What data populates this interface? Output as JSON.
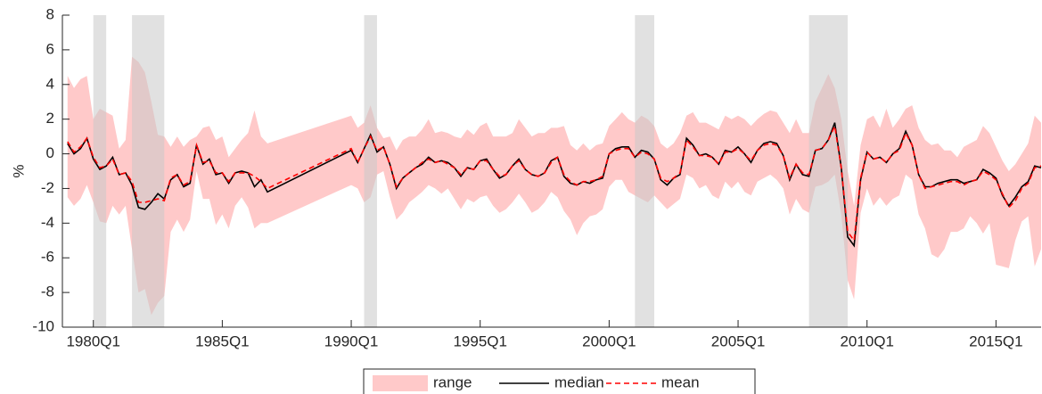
{
  "chart_data": {
    "type": "band-line",
    "ylabel": "%",
    "xlim": [
      1978.8,
      2016.75
    ],
    "ylim": [
      -10,
      8
    ],
    "yticks": [
      -10,
      -8,
      -6,
      -4,
      -2,
      0,
      2,
      4,
      6,
      8
    ],
    "xticks": [
      {
        "value": 1980,
        "label": "1980Q1"
      },
      {
        "value": 1985,
        "label": "1985Q1"
      },
      {
        "value": 1990,
        "label": "1990Q1"
      },
      {
        "value": 1995,
        "label": "1995Q1"
      },
      {
        "value": 2000,
        "label": "2000Q1"
      },
      {
        "value": 2005,
        "label": "2005Q1"
      },
      {
        "value": 2010,
        "label": "2010Q1"
      },
      {
        "value": 2015,
        "label": "2015Q1"
      }
    ],
    "recessions": [
      [
        1980.0,
        1980.5
      ],
      [
        1981.5,
        1982.75
      ],
      [
        1990.5,
        1991.0
      ],
      [
        2001.0,
        2001.75
      ],
      [
        2007.75,
        2009.25
      ]
    ],
    "recession_color": "#c8c8c8",
    "x": [
      1979,
      1979.25,
      1979.5,
      1979.75,
      1980,
      1980.25,
      1980.5,
      1980.75,
      1981,
      1981.25,
      1981.5,
      1981.75,
      1982,
      1982.25,
      1982.5,
      1982.75,
      1983,
      1983.25,
      1983.5,
      1983.75,
      1984,
      1984.25,
      1984.5,
      1984.75,
      1985,
      1985.25,
      1985.5,
      1985.75,
      1986,
      1986.25,
      1986.5,
      1986.75,
      1990,
      1990.25,
      1990.5,
      1990.75,
      1991,
      1991.25,
      1991.5,
      1991.75,
      1992,
      1992.25,
      1992.5,
      1992.75,
      1993,
      1993.25,
      1993.5,
      1993.75,
      1994,
      1994.25,
      1994.5,
      1994.75,
      1995,
      1995.25,
      1995.5,
      1995.75,
      1996,
      1996.25,
      1996.5,
      1996.75,
      1997,
      1997.25,
      1997.5,
      1997.75,
      1998,
      1998.25,
      1998.5,
      1998.75,
      1999,
      1999.25,
      1999.5,
      1999.75,
      2000,
      2000.25,
      2000.5,
      2000.75,
      2001,
      2001.25,
      2001.5,
      2001.75,
      2002,
      2002.25,
      2002.5,
      2002.75,
      2003,
      2003.25,
      2003.5,
      2003.75,
      2004,
      2004.25,
      2004.5,
      2004.75,
      2005,
      2005.25,
      2005.5,
      2005.75,
      2006,
      2006.25,
      2006.5,
      2006.75,
      2007,
      2007.25,
      2007.5,
      2007.75,
      2008,
      2008.25,
      2008.5,
      2008.75,
      2009,
      2009.25,
      2009.5,
      2009.75,
      2010,
      2010.25,
      2010.5,
      2010.75,
      2011,
      2011.25,
      2011.5,
      2011.75,
      2012,
      2012.25,
      2012.5,
      2012.75,
      2013,
      2013.25,
      2013.5,
      2013.75,
      2014,
      2014.25,
      2014.5,
      2014.75,
      2015,
      2015.25,
      2015.5,
      2015.75,
      2016,
      2016.25,
      2016.5,
      2016.75
    ],
    "range": {
      "name": "range",
      "color": "#ffc9c9",
      "upper": [
        4.5,
        3.8,
        4.3,
        4.5,
        2.0,
        2.6,
        2.4,
        2.2,
        0.3,
        0.8,
        5.6,
        5.3,
        4.7,
        3.0,
        1.1,
        1.0,
        0.4,
        1.0,
        0.4,
        0.8,
        1.0,
        1.5,
        1.6,
        0.8,
        1.0,
        -0.2,
        0.3,
        0.8,
        1.2,
        2.5,
        1.0,
        0.6,
        2.2,
        1.5,
        1.8,
        2.8,
        1.5,
        0.9,
        1.0,
        0.2,
        0.8,
        1.0,
        1.0,
        1.4,
        2.0,
        1.2,
        1.3,
        1.2,
        1.0,
        0.9,
        1.4,
        1.1,
        1.6,
        1.8,
        1.0,
        1.0,
        1.0,
        1.2,
        2.0,
        1.5,
        1.0,
        1.2,
        1.2,
        1.5,
        1.5,
        1.6,
        0.5,
        0.2,
        0.6,
        0.2,
        0.5,
        0.6,
        1.6,
        2.0,
        2.4,
        2.0,
        1.8,
        2.2,
        2.0,
        1.6,
        0.6,
        0.3,
        0.6,
        1.2,
        2.2,
        2.4,
        1.8,
        1.8,
        1.6,
        1.4,
        2.2,
        2.0,
        2.2,
        2.0,
        1.6,
        2.0,
        2.3,
        2.5,
        2.4,
        1.8,
        1.2,
        2.0,
        1.2,
        1.2,
        3.0,
        3.8,
        4.6,
        3.8,
        2.0,
        -1.0,
        -3.0,
        0.5,
        2.0,
        2.2,
        1.5,
        2.6,
        1.5,
        2.0,
        2.6,
        2.8,
        1.5,
        0.8,
        0.5,
        0.6,
        0.2,
        0.2,
        -0.2,
        0.4,
        0.6,
        0.8,
        1.6,
        1.2,
        0.4,
        -0.4,
        -1.0,
        -0.6,
        0.0,
        0.6,
        2.2,
        1.8
      ],
      "lower": [
        -2.5,
        -3.0,
        -2.6,
        -1.8,
        -2.8,
        -3.9,
        -4.0,
        -3.0,
        -3.5,
        -3.0,
        -5.5,
        -8.0,
        -7.8,
        -9.3,
        -8.6,
        -8.2,
        -4.5,
        -3.8,
        -4.5,
        -3.8,
        -1.0,
        -2.6,
        -2.6,
        -4.1,
        -3.5,
        -4.3,
        -3.0,
        -2.5,
        -3.1,
        -4.3,
        -4.0,
        -4.0,
        -1.8,
        -2.0,
        -2.8,
        -2.5,
        -1.2,
        -1.0,
        -2.5,
        -3.8,
        -3.4,
        -2.8,
        -2.5,
        -2.2,
        -1.8,
        -2.0,
        -2.3,
        -2.0,
        -2.6,
        -3.2,
        -2.6,
        -2.8,
        -2.5,
        -2.4,
        -3.0,
        -3.4,
        -3.2,
        -2.8,
        -2.3,
        -2.8,
        -3.4,
        -3.2,
        -2.8,
        -2.2,
        -2.5,
        -3.3,
        -3.8,
        -4.7,
        -4.0,
        -3.6,
        -3.5,
        -3.2,
        -1.9,
        -1.5,
        -1.5,
        -2.2,
        -2.4,
        -2.6,
        -2.8,
        -2.4,
        -2.8,
        -3.2,
        -2.9,
        -2.6,
        -1.2,
        -1.4,
        -2.0,
        -1.8,
        -2.4,
        -2.6,
        -1.6,
        -2.0,
        -1.6,
        -2.2,
        -2.4,
        -1.6,
        -1.4,
        -1.2,
        -1.5,
        -2.0,
        -3.5,
        -2.6,
        -3.2,
        -3.4,
        -1.9,
        -1.8,
        -1.6,
        -1.2,
        -3.5,
        -7.3,
        -8.4,
        -3.4,
        -2.0,
        -3.0,
        -2.5,
        -3.0,
        -2.6,
        -2.4,
        -1.2,
        -1.5,
        -3.5,
        -4.3,
        -5.8,
        -6.0,
        -5.5,
        -4.5,
        -4.5,
        -4.3,
        -3.6,
        -4.0,
        -4.6,
        -4.0,
        -6.4,
        -6.5,
        -6.6,
        -5.0,
        -3.9,
        -3.6,
        -6.5,
        -5.5
      ]
    },
    "series": [
      {
        "name": "median",
        "color": "#000000",
        "dash": false,
        "values": [
          0.6,
          0.0,
          0.3,
          0.9,
          -0.3,
          -0.9,
          -0.7,
          -0.2,
          -1.2,
          -1.1,
          -1.8,
          -3.1,
          -3.2,
          -2.8,
          -2.3,
          -2.6,
          -1.5,
          -1.2,
          -1.9,
          -1.7,
          0.5,
          -0.6,
          -0.3,
          -1.2,
          -1.1,
          -1.7,
          -1.1,
          -1.0,
          -1.1,
          -1.9,
          -1.5,
          -2.2,
          0.2,
          -0.5,
          0.3,
          1.1,
          0.1,
          0.4,
          -0.6,
          -2.0,
          -1.4,
          -1.1,
          -0.8,
          -0.6,
          -0.2,
          -0.5,
          -0.4,
          -0.5,
          -0.8,
          -1.3,
          -0.8,
          -0.9,
          -0.4,
          -0.3,
          -0.9,
          -1.4,
          -1.2,
          -0.7,
          -0.3,
          -0.9,
          -1.2,
          -1.3,
          -1.1,
          -0.4,
          -0.2,
          -1.3,
          -1.7,
          -1.8,
          -1.6,
          -1.7,
          -1.5,
          -1.4,
          0.0,
          0.3,
          0.4,
          0.4,
          -0.2,
          0.2,
          0.1,
          -0.3,
          -1.5,
          -1.8,
          -1.4,
          -1.2,
          0.9,
          0.5,
          -0.1,
          0.0,
          -0.2,
          -0.6,
          0.2,
          0.1,
          0.4,
          0.0,
          -0.5,
          0.2,
          0.6,
          0.7,
          0.6,
          -0.1,
          -1.5,
          -0.6,
          -1.2,
          -1.3,
          0.2,
          0.3,
          0.8,
          1.8,
          -0.8,
          -4.8,
          -5.3,
          -1.5,
          0.1,
          -0.3,
          -0.2,
          -0.5,
          0.0,
          0.3,
          1.3,
          0.5,
          -1.2,
          -1.9,
          -1.9,
          -1.7,
          -1.6,
          -1.5,
          -1.5,
          -1.7,
          -1.6,
          -1.5,
          -0.9,
          -1.1,
          -1.4,
          -2.4,
          -3.0,
          -2.5,
          -1.9,
          -1.6,
          -0.7,
          -0.8
        ]
      },
      {
        "name": "mean",
        "color": "#ff0000",
        "dash": true,
        "values": [
          0.7,
          0.1,
          0.4,
          0.9,
          -0.2,
          -0.8,
          -0.7,
          -0.3,
          -1.2,
          -1.1,
          -1.6,
          -2.8,
          -2.8,
          -2.7,
          -2.6,
          -2.7,
          -1.4,
          -1.2,
          -1.8,
          -1.6,
          0.5,
          -0.5,
          -0.4,
          -1.1,
          -1.1,
          -1.6,
          -1.1,
          -1.1,
          -1.1,
          -1.3,
          -1.6,
          -2.0,
          0.3,
          -0.5,
          0.3,
          1.0,
          0.2,
          0.4,
          -0.6,
          -1.9,
          -1.4,
          -1.1,
          -0.8,
          -0.5,
          -0.3,
          -0.5,
          -0.4,
          -0.6,
          -0.8,
          -1.2,
          -0.8,
          -0.9,
          -0.4,
          -0.4,
          -0.9,
          -1.3,
          -1.2,
          -0.7,
          -0.4,
          -0.9,
          -1.2,
          -1.3,
          -1.1,
          -0.5,
          -0.2,
          -1.2,
          -1.6,
          -1.8,
          -1.6,
          -1.6,
          -1.5,
          -1.3,
          0.0,
          0.2,
          0.3,
          0.3,
          -0.2,
          0.1,
          0.0,
          -0.3,
          -1.4,
          -1.6,
          -1.4,
          -1.1,
          0.8,
          0.4,
          -0.1,
          -0.1,
          -0.2,
          -0.6,
          0.1,
          0.1,
          0.3,
          0.0,
          -0.4,
          0.2,
          0.5,
          0.6,
          0.5,
          -0.1,
          -1.4,
          -0.6,
          -1.1,
          -1.2,
          0.2,
          0.3,
          0.8,
          1.6,
          -0.8,
          -4.5,
          -5.0,
          -1.4,
          0.1,
          -0.3,
          -0.2,
          -0.5,
          0.0,
          0.2,
          1.2,
          0.5,
          -1.2,
          -2.0,
          -1.9,
          -1.8,
          -1.7,
          -1.6,
          -1.6,
          -1.8,
          -1.6,
          -1.5,
          -1.0,
          -1.2,
          -1.5,
          -2.3,
          -3.1,
          -2.7,
          -2.0,
          -1.7,
          -0.8,
          -0.7
        ]
      }
    ]
  }
}
